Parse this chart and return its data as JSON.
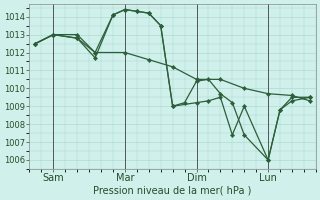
{
  "background_color": "#cff0eb",
  "grid_color": "#aad4ce",
  "line_color": "#2d5e3a",
  "marker_color": "#2d5e3a",
  "xlabel": "Pression niveau de la mer( hPa )",
  "ylim": [
    1005.5,
    1014.7
  ],
  "yticks": [
    1006,
    1007,
    1008,
    1009,
    1010,
    1011,
    1012,
    1013,
    1014
  ],
  "xlim": [
    0,
    96
  ],
  "xtick_positions": [
    8,
    32,
    56,
    80
  ],
  "xtick_labels": [
    "Sam",
    "Mar",
    "Dim",
    "Lun"
  ],
  "vline_positions": [
    8,
    32,
    56,
    80
  ],
  "lines": [
    {
      "x": [
        2,
        8,
        16,
        22,
        32,
        40,
        48,
        56,
        64,
        72,
        80,
        88,
        94
      ],
      "y": [
        1012.5,
        1013.0,
        1012.8,
        1012.0,
        1012.0,
        1011.6,
        1011.2,
        1010.5,
        1010.5,
        1010.0,
        1009.7,
        1009.6,
        1009.3
      ]
    },
    {
      "x": [
        2,
        8,
        16,
        22,
        28,
        32,
        36,
        40,
        44,
        48,
        52,
        56,
        60,
        64,
        68,
        72,
        80,
        84,
        88,
        94
      ],
      "y": [
        1012.5,
        1013.0,
        1012.8,
        1011.7,
        1014.1,
        1014.4,
        1014.3,
        1014.2,
        1013.5,
        1009.0,
        1009.2,
        1010.4,
        1010.5,
        1009.7,
        1009.2,
        1007.4,
        1006.0,
        1008.8,
        1009.3,
        1009.5
      ]
    },
    {
      "x": [
        2,
        8,
        16,
        22,
        28,
        32,
        36,
        40,
        44,
        48,
        56,
        60,
        64,
        68,
        72,
        80,
        84,
        88,
        94
      ],
      "y": [
        1012.5,
        1013.0,
        1013.0,
        1012.0,
        1014.1,
        1014.4,
        1014.3,
        1014.2,
        1013.5,
        1009.0,
        1009.2,
        1009.3,
        1009.5,
        1007.4,
        1009.0,
        1006.0,
        1008.8,
        1009.5,
        1009.5
      ]
    }
  ]
}
